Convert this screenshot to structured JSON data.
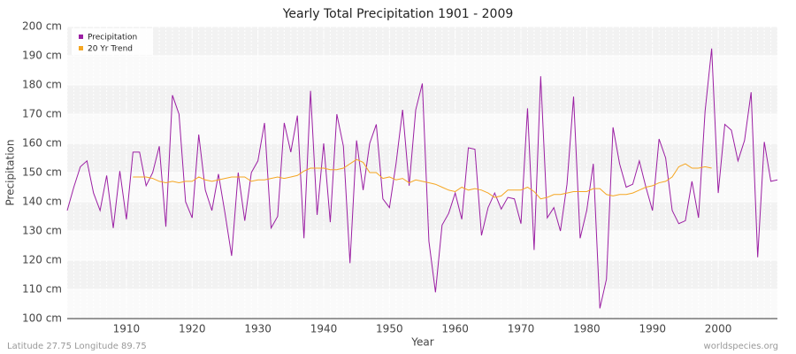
{
  "chart_data": {
    "type": "line",
    "title": "Yearly Total Precipitation 1901 - 2009",
    "x_label": "Year",
    "y_label": "Precipitation",
    "footer_left": "Latitude 27.75 Longitude 89.75",
    "footer_right": "worldspecies.org",
    "x": [
      1901,
      1902,
      1903,
      1904,
      1905,
      1906,
      1907,
      1908,
      1909,
      1910,
      1911,
      1912,
      1913,
      1914,
      1915,
      1916,
      1917,
      1918,
      1919,
      1920,
      1921,
      1922,
      1923,
      1924,
      1925,
      1926,
      1927,
      1928,
      1929,
      1930,
      1931,
      1932,
      1933,
      1934,
      1935,
      1936,
      1937,
      1938,
      1939,
      1940,
      1941,
      1942,
      1943,
      1944,
      1945,
      1946,
      1947,
      1948,
      1949,
      1950,
      1951,
      1952,
      1953,
      1954,
      1955,
      1956,
      1957,
      1958,
      1959,
      1960,
      1961,
      1962,
      1963,
      1964,
      1965,
      1966,
      1967,
      1968,
      1969,
      1970,
      1971,
      1972,
      1973,
      1974,
      1975,
      1976,
      1977,
      1978,
      1979,
      1980,
      1981,
      1982,
      1983,
      1984,
      1985,
      1986,
      1987,
      1988,
      1989,
      1990,
      1991,
      1992,
      1993,
      1994,
      1995,
      1996,
      1997,
      1998,
      1999,
      2000,
      2001,
      2002,
      2003,
      2004,
      2005,
      2006,
      2007,
      2008,
      2009
    ],
    "series": [
      {
        "name": "Precipitation",
        "color": "#9b1fa3",
        "values": [
          137,
          145,
          152,
          154,
          143,
          137,
          149,
          131,
          150.5,
          134,
          157,
          157,
          145.5,
          150,
          159,
          131.5,
          176.5,
          170,
          140,
          134.5,
          163,
          144,
          137,
          149.5,
          136,
          121.5,
          150,
          133.5,
          150,
          154,
          167,
          131,
          135,
          167,
          157,
          169.5,
          127.5,
          178,
          135.5,
          160,
          133,
          170,
          159,
          119,
          161,
          144,
          160,
          166.5,
          141,
          138,
          153,
          171.5,
          145.5,
          171.5,
          180.5,
          126.5,
          109,
          132,
          136,
          143,
          134,
          158.5,
          158,
          128.5,
          138,
          143,
          137.5,
          141.5,
          141,
          132.5,
          172,
          123.5,
          183,
          134.5,
          138,
          130,
          146,
          176,
          127.5,
          137,
          153,
          103.5,
          113.5,
          165.5,
          153,
          145,
          146,
          154,
          145,
          137,
          161.5,
          155,
          137,
          132.5,
          133.5,
          147,
          134.5,
          171,
          192.5,
          143,
          166.5,
          164.5,
          154,
          161,
          177.5,
          121,
          160.5,
          147,
          147.5
        ]
      },
      {
        "name": "20 Yr Trend",
        "color": "#f5a623",
        "values": [
          null,
          null,
          null,
          null,
          null,
          null,
          null,
          null,
          null,
          null,
          148.5,
          148.5,
          148.5,
          148,
          147,
          146.5,
          147,
          146.5,
          147,
          147,
          148.5,
          147.5,
          147,
          147.5,
          148,
          148.5,
          148.5,
          148.5,
          147,
          147.5,
          147.5,
          148,
          148.5,
          148,
          148.5,
          149,
          150.5,
          151.5,
          151.5,
          151.5,
          151,
          151,
          151.5,
          153,
          154.5,
          153.5,
          150,
          150,
          148,
          148.5,
          147.5,
          148,
          146.5,
          147.5,
          147,
          146.5,
          146,
          145,
          144,
          143.5,
          145,
          144,
          144.5,
          144,
          143,
          141.5,
          142,
          144,
          144,
          144,
          145,
          143.5,
          141,
          141.5,
          142.5,
          142.5,
          143,
          143.5,
          143.5,
          143.5,
          144.5,
          144.5,
          142.5,
          142,
          142.5,
          142.5,
          143,
          144,
          145,
          145.5,
          146.5,
          147,
          148.5,
          152,
          153,
          151.5,
          151.5,
          152,
          151.5,
          null,
          null,
          null,
          null,
          null,
          null,
          null,
          null,
          null,
          null
        ]
      }
    ],
    "xlim": [
      1901,
      2009
    ],
    "xticks": [
      1910,
      1920,
      1930,
      1940,
      1950,
      1960,
      1970,
      1980,
      1990,
      2000
    ],
    "ylim": [
      100,
      200
    ],
    "yticks": [
      {
        "value": 100,
        "label": "100 cm"
      },
      {
        "value": 110,
        "label": "110 cm"
      },
      {
        "value": 120,
        "label": "120 cm"
      },
      {
        "value": 130,
        "label": "130 cm"
      },
      {
        "value": 140,
        "label": "140 cm"
      },
      {
        "value": 150,
        "label": "150 cm"
      },
      {
        "value": 160,
        "label": "160 cm"
      },
      {
        "value": 170,
        "label": "170 cm"
      },
      {
        "value": 180,
        "label": "180 cm"
      },
      {
        "value": 190,
        "label": "190 cm"
      },
      {
        "value": 200,
        "label": "200 cm"
      }
    ],
    "legend": "upper-left",
    "grid": true
  }
}
